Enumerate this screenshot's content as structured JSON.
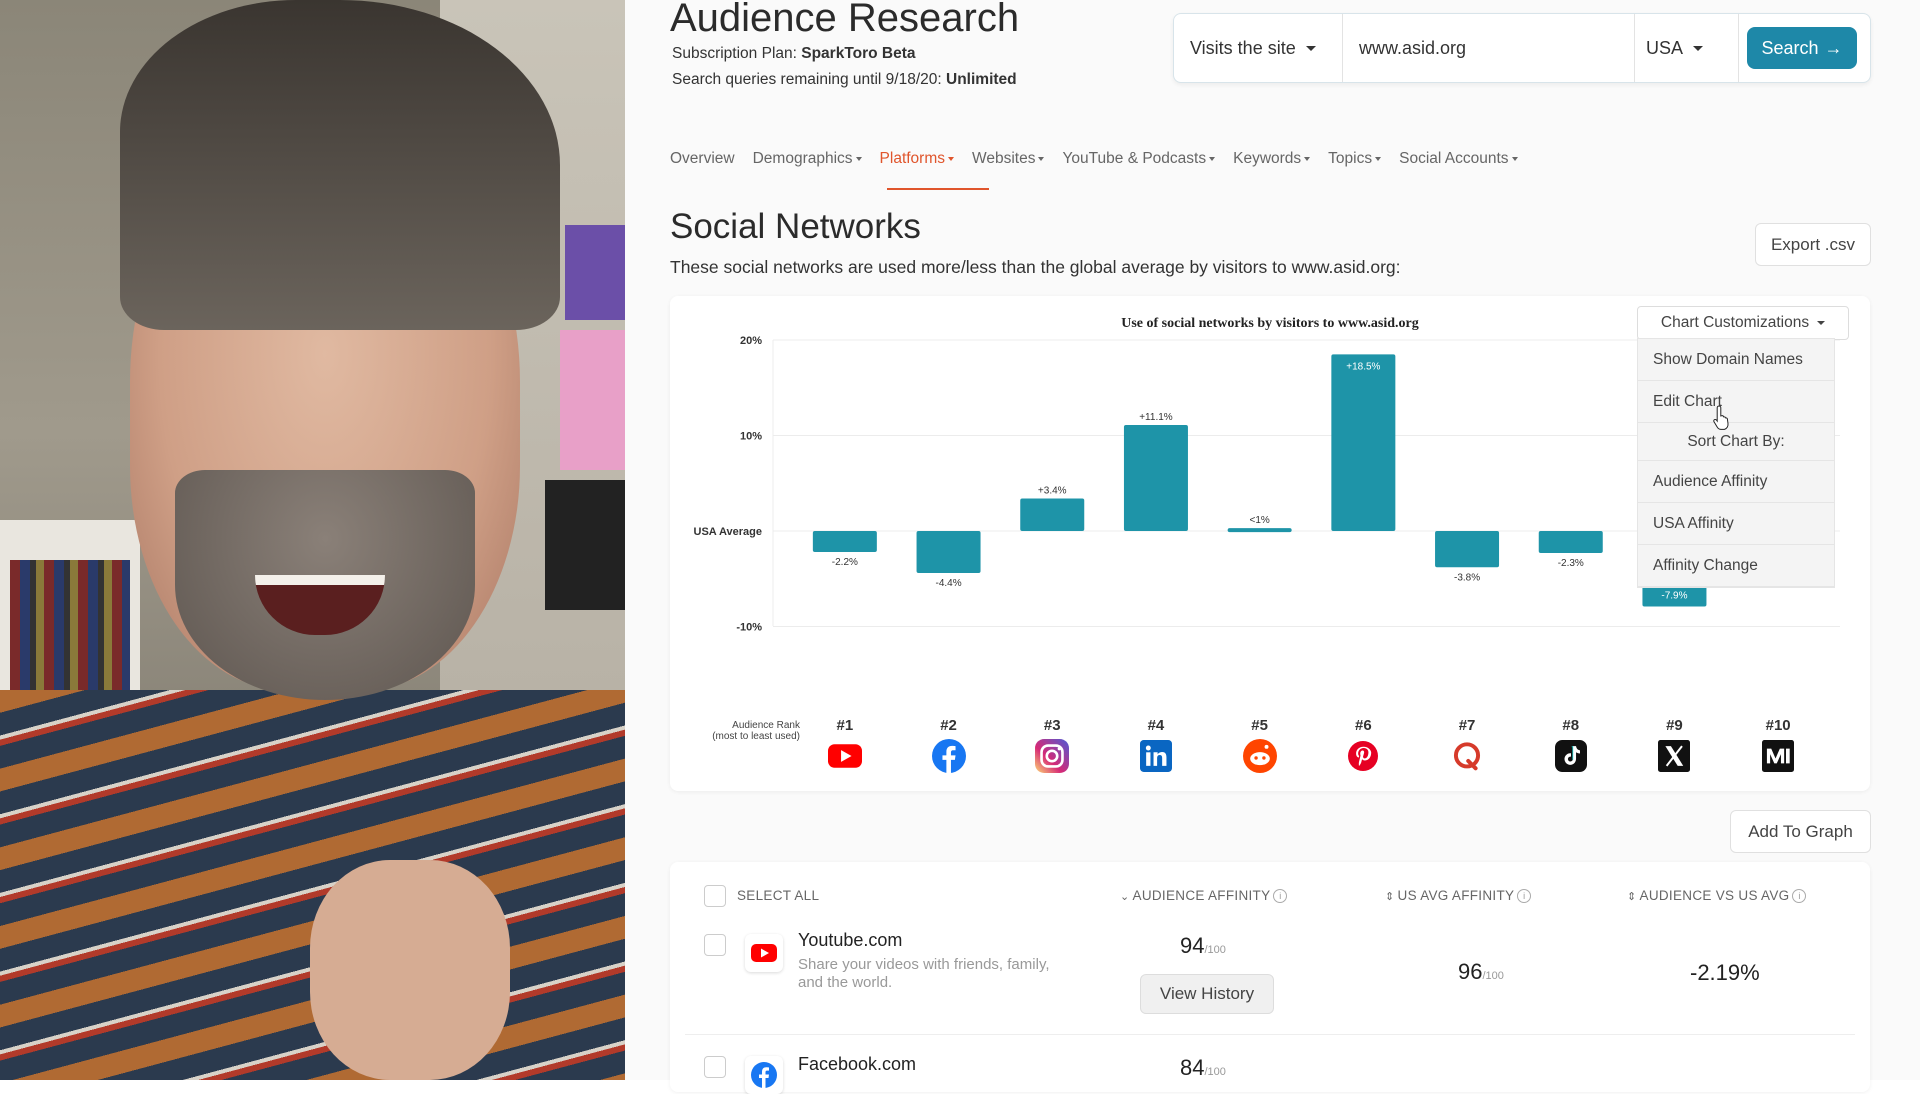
{
  "page": {
    "title": "Audience Research",
    "plan_label": "Subscription Plan:",
    "plan_value": "SparkToro Beta",
    "queries_label": "Search queries remaining until 9/18/20:",
    "queries_value": "Unlimited"
  },
  "search": {
    "mode": "Visits the site",
    "query": "www.asid.org",
    "country": "USA",
    "button": "Search"
  },
  "nav": {
    "tabs": [
      {
        "label": "Overview",
        "dropdown": false
      },
      {
        "label": "Demographics",
        "dropdown": true
      },
      {
        "label": "Platforms",
        "dropdown": true,
        "active": true
      },
      {
        "label": "Websites",
        "dropdown": true
      },
      {
        "label": "YouTube & Podcasts",
        "dropdown": true
      },
      {
        "label": "Keywords",
        "dropdown": true
      },
      {
        "label": "Topics",
        "dropdown": true
      },
      {
        "label": "Social Accounts",
        "dropdown": true
      }
    ]
  },
  "section": {
    "title": "Social Networks",
    "subtitle": "These social networks are used more/less than the global average by visitors to www.asid.org:",
    "export_button": "Export .csv"
  },
  "chart_menu": {
    "button": "Chart Customizations",
    "items": [
      "Show Domain Names",
      "Edit Chart"
    ],
    "sort_heading": "Sort Chart By:",
    "sort_items": [
      "Audience Affinity",
      "USA Affinity",
      "Affinity Change"
    ]
  },
  "chart_data": {
    "type": "bar",
    "title": "Use of social networks by visitors to www.asid.org",
    "y_ticks": [
      "20%",
      "10%",
      "USA Average",
      "-10%"
    ],
    "ylim": [
      -10,
      20
    ],
    "x_label": "Audience Rank (most to least used)",
    "x_label_line1": "Audience Rank",
    "x_label_line2": "(most to least used)",
    "categories": [
      "#1",
      "#2",
      "#3",
      "#4",
      "#5",
      "#6",
      "#7",
      "#8",
      "#9",
      "#10"
    ],
    "networks": [
      "youtube-icon",
      "facebook-icon",
      "instagram-icon",
      "linkedin-icon",
      "reddit-icon",
      "pinterest-icon",
      "quora-icon",
      "tiktok-icon",
      "x-icon",
      "medium-icon"
    ],
    "values": [
      -2.2,
      -4.4,
      3.4,
      11.1,
      0.3,
      18.5,
      -3.8,
      -2.3,
      -7.9,
      null
    ],
    "labels": [
      "-2.2%",
      "-4.4%",
      "+3.4%",
      "+11.1%",
      "<1%",
      "+18.5%",
      "-3.8%",
      "-2.3%",
      "-7.9%",
      ""
    ],
    "bar_color": "#1e94a8",
    "grid": true
  },
  "add_to_graph": "Add To Graph",
  "table": {
    "select_all": "SELECT ALL",
    "columns": [
      "AUDIENCE AFFINITY",
      "US AVG AFFINITY",
      "AUDIENCE VS US AVG"
    ],
    "rows": [
      {
        "name": "Youtube.com",
        "desc": "Share your videos with friends, family, and the world.",
        "audience": "94",
        "us_avg": "96",
        "delta": "-2.19%",
        "history": "View History",
        "icon": "youtube-icon"
      },
      {
        "name": "Facebook.com",
        "desc": "",
        "audience": "84",
        "us_avg": "",
        "delta": "",
        "history": "",
        "icon": "facebook-icon"
      }
    ],
    "denominator": "/100"
  },
  "colors": {
    "accent": "#e0552c",
    "primary": "#1e88a8",
    "bar": "#1e94a8"
  }
}
